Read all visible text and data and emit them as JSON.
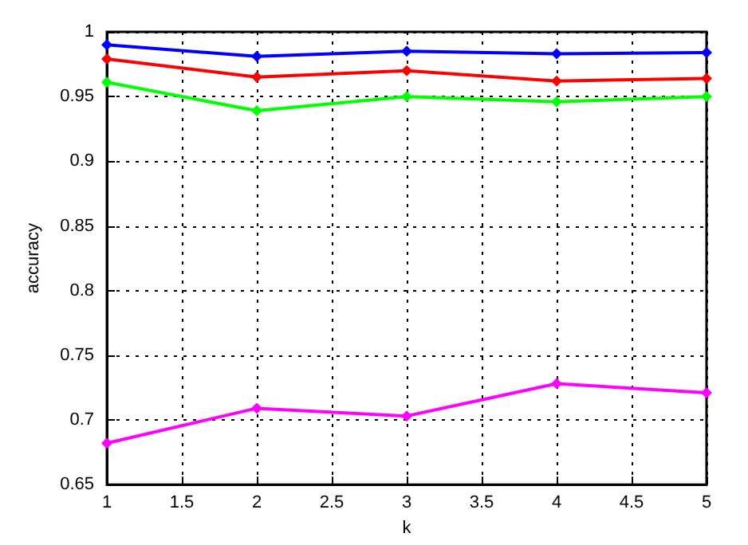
{
  "chart_data": {
    "type": "line",
    "xlabel": "k",
    "ylabel": "accuracy",
    "x": [
      1,
      2,
      3,
      4,
      5
    ],
    "series": [
      {
        "color": "#0000ff",
        "values": [
          0.99,
          0.981,
          0.985,
          0.983,
          0.984
        ]
      },
      {
        "color": "#ff0000",
        "values": [
          0.979,
          0.965,
          0.97,
          0.962,
          0.964
        ]
      },
      {
        "color": "#00ff00",
        "values": [
          0.961,
          0.939,
          0.95,
          0.946,
          0.95
        ]
      },
      {
        "color": "#ff00ff",
        "values": [
          0.682,
          0.709,
          0.703,
          0.728,
          0.721
        ]
      }
    ],
    "xlim": [
      1,
      5
    ],
    "xticks": [
      1,
      1.5,
      2,
      2.5,
      3,
      3.5,
      4,
      4.5,
      5
    ],
    "ylim": [
      0.65,
      1
    ],
    "yticks": [
      0.65,
      0.7,
      0.75,
      0.8,
      0.85,
      0.9,
      0.95,
      1
    ],
    "grid": true,
    "marker": "diamond",
    "line_style": "solid"
  }
}
